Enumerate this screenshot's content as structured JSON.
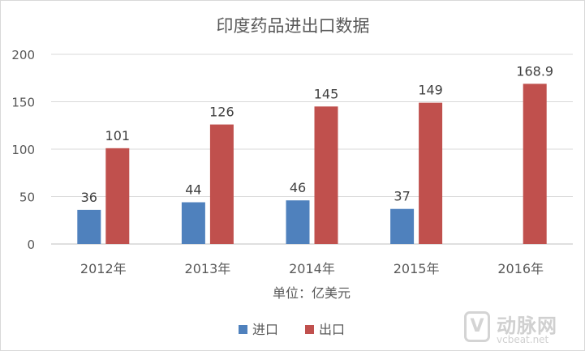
{
  "chart_data": {
    "type": "bar",
    "title": "印度药品进出口数据",
    "categories": [
      "2012年",
      "2013年",
      "2014年",
      "2015年",
      "2016年"
    ],
    "series": [
      {
        "name": "进口",
        "color": "#4f81bd",
        "values": [
          36,
          44,
          46,
          37,
          null
        ],
        "labels": [
          "36",
          "44",
          "46",
          "37",
          ""
        ]
      },
      {
        "name": "出口",
        "color": "#c0504d",
        "values": [
          101,
          126,
          145,
          149,
          168.9
        ],
        "labels": [
          "101",
          "126",
          "145",
          "149",
          "168.9"
        ]
      }
    ],
    "ylim": [
      0,
      200
    ],
    "yticks": [
      "0",
      "50",
      "100",
      "150",
      "200"
    ],
    "xlabel": "单位：亿美元",
    "ylabel": "",
    "grid": true,
    "legend_position": "bottom"
  },
  "watermark": {
    "logo": "V",
    "name": "动脉网",
    "url": "vcbeat.net"
  }
}
